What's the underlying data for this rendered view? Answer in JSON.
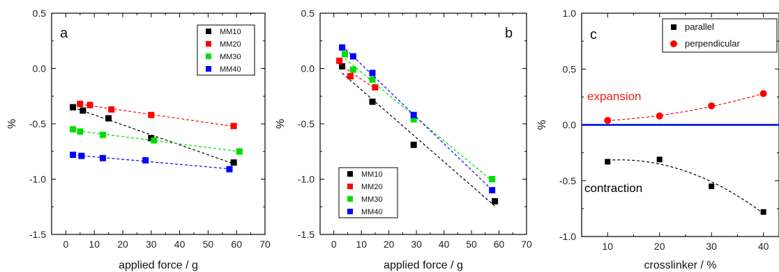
{
  "chart_data": [
    {
      "type": "scatter",
      "panel_label": "a",
      "xlabel": "applied force / g",
      "ylabel": "%",
      "xlim": [
        -5,
        70
      ],
      "ylim": [
        -1.5,
        0.5
      ],
      "xticks": [
        "0",
        "10",
        "20",
        "30",
        "40",
        "50",
        "60",
        "70"
      ],
      "yticks": [
        "0.5",
        "0.0",
        "-0.5",
        "-1.0",
        "-1.5"
      ],
      "legend_position": "top-right",
      "series": [
        {
          "name": "MM10",
          "color": "#000000",
          "x": [
            2.5,
            6,
            15,
            30,
            59
          ],
          "y": [
            -0.35,
            -0.38,
            -0.45,
            -0.63,
            -0.85
          ]
        },
        {
          "name": "MM20",
          "color": "#ff0000",
          "x": [
            5,
            8.5,
            16,
            30,
            59
          ],
          "y": [
            -0.32,
            -0.33,
            -0.37,
            -0.42,
            -0.52
          ]
        },
        {
          "name": "MM30",
          "color": "#00dd00",
          "x": [
            2.5,
            5,
            13,
            31,
            61
          ],
          "y": [
            -0.55,
            -0.57,
            -0.6,
            -0.65,
            -0.75
          ]
        },
        {
          "name": "MM40",
          "color": "#0000ff",
          "x": [
            2.5,
            5.5,
            13,
            28,
            57.5
          ],
          "y": [
            -0.78,
            -0.79,
            -0.81,
            -0.83,
            -0.91
          ]
        }
      ]
    },
    {
      "type": "scatter",
      "panel_label": "b",
      "xlabel": "applied force / g",
      "ylabel": "%",
      "xlim": [
        -5,
        70
      ],
      "ylim": [
        -1.5,
        0.5
      ],
      "xticks": [
        "0",
        "10",
        "20",
        "30",
        "40",
        "50",
        "60",
        "70"
      ],
      "yticks": [
        "0.5",
        "0.0",
        "-0.5",
        "-1.0",
        "-1.5"
      ],
      "legend_position": "bottom-left",
      "series": [
        {
          "name": "MM10",
          "color": "#000000",
          "x": [
            3,
            14,
            29,
            58.5
          ],
          "y": [
            0.02,
            -0.3,
            -0.69,
            -1.2
          ]
        },
        {
          "name": "MM20",
          "color": "#ff0000",
          "x": [
            2,
            6,
            15
          ],
          "y": [
            0.07,
            -0.07,
            -0.17
          ]
        },
        {
          "name": "MM30",
          "color": "#00dd00",
          "x": [
            4,
            7,
            14,
            29,
            57.5
          ],
          "y": [
            0.13,
            -0.01,
            -0.1,
            -0.46,
            -1.0
          ]
        },
        {
          "name": "MM40",
          "color": "#0000ff",
          "x": [
            3,
            7,
            14,
            29,
            57.5
          ],
          "y": [
            0.19,
            0.11,
            -0.04,
            -0.42,
            -1.1
          ]
        }
      ]
    },
    {
      "type": "scatter",
      "panel_label": "c",
      "xlabel": "crosslinker / %",
      "ylabel": "%",
      "xlim": [
        5,
        43
      ],
      "ylim": [
        -1.0,
        1.0
      ],
      "xticks": [
        "10",
        "20",
        "30",
        "40"
      ],
      "yticks": [
        "1.0",
        "0.5",
        "0.0",
        "-0.5",
        "-1.0"
      ],
      "legend_position": "top-right",
      "annotations": [
        {
          "text": "expansion",
          "color": "#e8201a"
        },
        {
          "text": "contraction",
          "color": "#000000"
        }
      ],
      "series": [
        {
          "name": "parallel",
          "color": "#000000",
          "marker": "square",
          "x": [
            10,
            20,
            30,
            40
          ],
          "y": [
            -0.33,
            -0.31,
            -0.55,
            -0.78
          ]
        },
        {
          "name": "perpendicular",
          "color": "#ff0000",
          "marker": "circle",
          "x": [
            10,
            20,
            30,
            40
          ],
          "y": [
            0.04,
            0.08,
            0.17,
            0.28
          ]
        }
      ]
    }
  ]
}
